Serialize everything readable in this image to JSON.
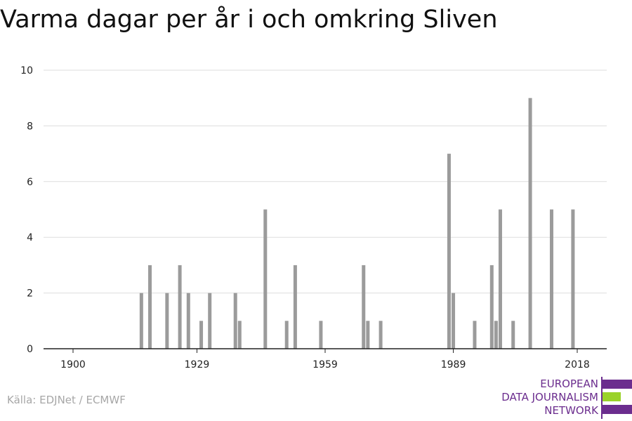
{
  "title": "Varma dagar per år i och omkring Sliven",
  "source": "Källa: EDJNet / ECMWF",
  "logo": {
    "lines": [
      "EUROPEAN",
      "DATA JOURNALISM",
      "NETWORK"
    ],
    "colors": {
      "purple": "#6b2d8e",
      "green": "#9ad22a"
    }
  },
  "colors": {
    "bar": "#9b9b9b",
    "grid": "#dddddd",
    "axis": "#222222",
    "text": "#222222"
  },
  "chart_data": {
    "type": "bar",
    "title": "Varma dagar per år i och omkring Sliven",
    "xlabel": "",
    "ylabel": "",
    "xlim": [
      1900,
      2018
    ],
    "ylim": [
      0,
      10
    ],
    "x_ticks": [
      1900,
      1929,
      1959,
      1989,
      2018
    ],
    "y_ticks": [
      0,
      2,
      4,
      6,
      8,
      10
    ],
    "grid": true,
    "x": [
      1916,
      1918,
      1922,
      1925,
      1927,
      1930,
      1932,
      1938,
      1939,
      1945,
      1950,
      1952,
      1958,
      1968,
      1969,
      1972,
      1988,
      1989,
      1994,
      1998,
      1999,
      2000,
      2003,
      2007,
      2012,
      2017
    ],
    "values": [
      2,
      3,
      2,
      3,
      2,
      1,
      2,
      2,
      1,
      5,
      1,
      3,
      1,
      3,
      1,
      1,
      7,
      2,
      1,
      3,
      1,
      5,
      1,
      9,
      5,
      5
    ]
  }
}
